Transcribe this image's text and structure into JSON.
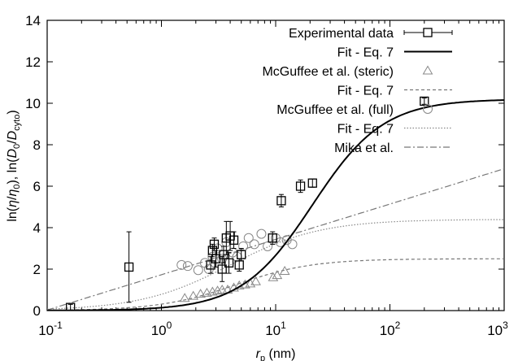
{
  "chart_data": {
    "type": "scatter",
    "xscale": "log",
    "xlim": [
      0.1,
      1000
    ],
    "ylim": [
      0,
      14
    ],
    "xticks": [
      {
        "value": 0.1,
        "base": "10",
        "exp": "-1"
      },
      {
        "value": 1,
        "base": "10",
        "exp": "0"
      },
      {
        "value": 10,
        "base": "10",
        "exp": "1"
      },
      {
        "value": 100,
        "base": "10",
        "exp": "2"
      },
      {
        "value": 1000,
        "base": "10",
        "exp": "3"
      }
    ],
    "yticks": [
      "0",
      "2",
      "4",
      "6",
      "8",
      "10",
      "12",
      "14"
    ],
    "xlabel": {
      "main": "r",
      "sub": "p",
      "unit": " (nm)"
    },
    "ylabel": {
      "p1": "ln(",
      "eta": "η",
      "p2": "/",
      "eta0": "η",
      "zero": "0",
      "p3": "), ln(",
      "D": "D",
      "D0sub": "0",
      "slash": "/",
      "Dc": "D",
      "cyto": "cyto",
      "p4": ")"
    },
    "grid": false,
    "legend_position": "top-right",
    "series": [
      {
        "name": "Experimental data",
        "kind": "points-errorbars",
        "marker": "square",
        "color": "#000000",
        "points": [
          {
            "x": 0.16,
            "y": 0.15,
            "err": 0.15
          },
          {
            "x": 0.52,
            "y": 2.1,
            "err": 1.7
          },
          {
            "x": 2.7,
            "y": 2.2,
            "err": 0.4
          },
          {
            "x": 2.8,
            "y": 2.9,
            "err": 0.3
          },
          {
            "x": 2.9,
            "y": 3.2,
            "err": 0.3
          },
          {
            "x": 3.0,
            "y": 2.5,
            "err": 0.4
          },
          {
            "x": 3.4,
            "y": 2.0,
            "err": 0.6
          },
          {
            "x": 3.5,
            "y": 2.7,
            "err": 0.4
          },
          {
            "x": 3.7,
            "y": 3.5,
            "err": 0.8
          },
          {
            "x": 3.9,
            "y": 2.3,
            "err": 0.5
          },
          {
            "x": 4.0,
            "y": 3.6,
            "err": 0.7
          },
          {
            "x": 4.3,
            "y": 3.4,
            "err": 0.4
          },
          {
            "x": 4.8,
            "y": 2.2,
            "err": 0.3
          },
          {
            "x": 5.0,
            "y": 2.7,
            "err": 0.3
          },
          {
            "x": 9.4,
            "y": 3.5,
            "err": 0.3
          },
          {
            "x": 11.2,
            "y": 5.3,
            "err": 0.3
          },
          {
            "x": 16.5,
            "y": 6.0,
            "err": 0.3
          },
          {
            "x": 21.0,
            "y": 6.15,
            "err": 0.2
          },
          {
            "x": 200,
            "y": 10.1,
            "err": 0.15
          }
        ]
      },
      {
        "name": "Fit - Eq. 7",
        "kind": "line",
        "style": "solid",
        "color": "#000000",
        "A": 10.2,
        "k": 1.4,
        "rhalf": 21
      },
      {
        "name": "McGuffee et al. (steric)",
        "kind": "points",
        "marker": "triangle",
        "color": "#888888",
        "points": [
          {
            "x": 1.6,
            "y": 0.6
          },
          {
            "x": 1.9,
            "y": 0.7
          },
          {
            "x": 2.2,
            "y": 0.8
          },
          {
            "x": 2.5,
            "y": 0.85
          },
          {
            "x": 2.8,
            "y": 0.9
          },
          {
            "x": 3.1,
            "y": 0.95
          },
          {
            "x": 3.4,
            "y": 1.0
          },
          {
            "x": 3.8,
            "y": 1.0
          },
          {
            "x": 4.3,
            "y": 1.1
          },
          {
            "x": 4.8,
            "y": 1.2
          },
          {
            "x": 5.4,
            "y": 1.25
          },
          {
            "x": 6.0,
            "y": 1.3
          },
          {
            "x": 6.7,
            "y": 1.4
          },
          {
            "x": 9.5,
            "y": 1.6
          },
          {
            "x": 10.3,
            "y": 1.7
          },
          {
            "x": 12.0,
            "y": 1.9
          }
        ]
      },
      {
        "name": "Fit - Eq. 7",
        "kind": "line",
        "style": "dashed",
        "color": "#777777",
        "A": 2.5,
        "k": 1.3,
        "rhalf": 4.5
      },
      {
        "name": "McGuffee et al. (full)",
        "kind": "points",
        "marker": "circle",
        "color": "#888888",
        "points": [
          {
            "x": 1.5,
            "y": 2.2
          },
          {
            "x": 1.7,
            "y": 2.15
          },
          {
            "x": 2.1,
            "y": 1.95
          },
          {
            "x": 2.4,
            "y": 2.3
          },
          {
            "x": 2.6,
            "y": 2.0
          },
          {
            "x": 2.8,
            "y": 2.6
          },
          {
            "x": 3.1,
            "y": 3.0
          },
          {
            "x": 3.4,
            "y": 2.5
          },
          {
            "x": 3.7,
            "y": 3.3
          },
          {
            "x": 4.2,
            "y": 2.8
          },
          {
            "x": 4.6,
            "y": 2.6
          },
          {
            "x": 5.2,
            "y": 3.1
          },
          {
            "x": 5.8,
            "y": 3.5
          },
          {
            "x": 6.5,
            "y": 3.2
          },
          {
            "x": 7.5,
            "y": 3.7
          },
          {
            "x": 8.5,
            "y": 3.1
          },
          {
            "x": 10.0,
            "y": 3.5
          },
          {
            "x": 11.0,
            "y": 3.3
          },
          {
            "x": 12.5,
            "y": 3.4
          },
          {
            "x": 14.0,
            "y": 3.2
          }
        ]
      },
      {
        "name": "Fit - Eq. 7",
        "kind": "line",
        "style": "dotted",
        "color": "#888888",
        "A": 4.4,
        "k": 1.1,
        "rhalf": 4
      },
      {
        "name": "Mika et al.",
        "kind": "line",
        "style": "dashdot",
        "color": "#777777",
        "linear": {
          "a": 0.74,
          "b": 1.73
        }
      }
    ]
  }
}
